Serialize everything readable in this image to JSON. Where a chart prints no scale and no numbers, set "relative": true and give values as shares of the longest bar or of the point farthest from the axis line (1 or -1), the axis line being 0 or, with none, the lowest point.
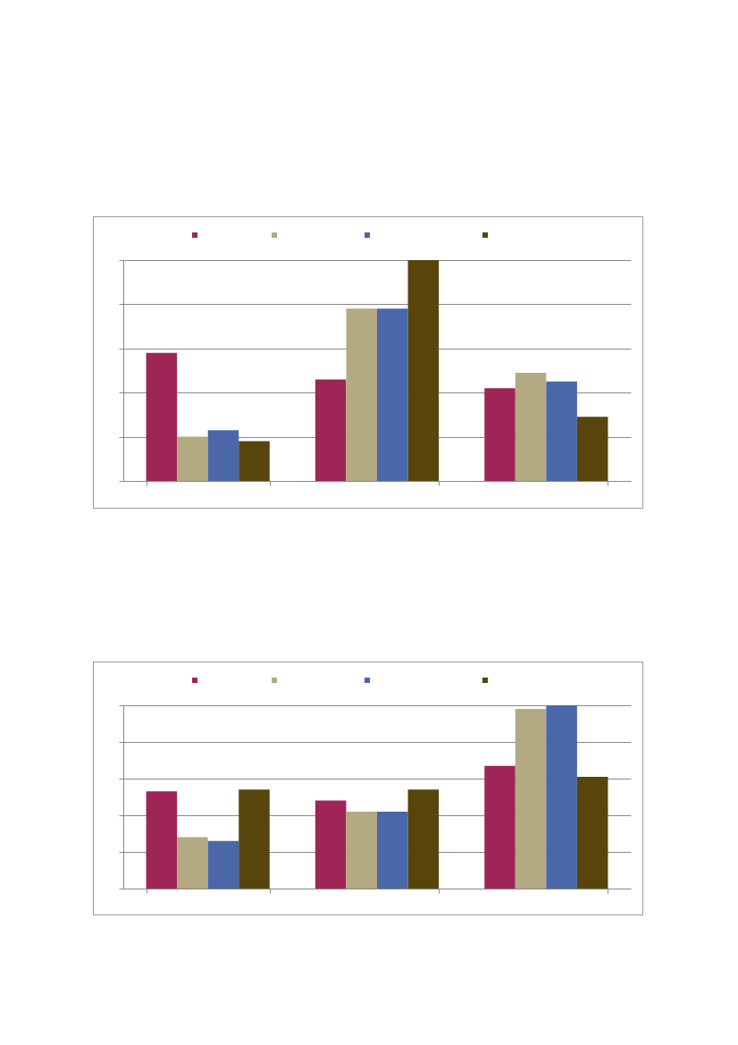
{
  "chart_data": [
    {
      "type": "bar",
      "relative": true,
      "categories": [
        null,
        null,
        null
      ],
      "grid": "y",
      "series": [
        {
          "color": "#9e2555",
          "values": [
            0.58,
            0.46,
            0.42
          ]
        },
        {
          "color": "#b3aa82",
          "values": [
            0.2,
            0.78,
            0.49
          ]
        },
        {
          "color": "#4a67aa",
          "values": [
            0.23,
            0.78,
            0.45
          ]
        },
        {
          "color": "#58450c",
          "values": [
            0.18,
            1,
            0.29
          ]
        }
      ]
    },
    {
      "type": "bar",
      "relative": true,
      "categories": [
        null,
        null,
        null
      ],
      "grid": "y",
      "series": [
        {
          "color": "#9e2555",
          "values": [
            0.53,
            0.48,
            0.67
          ]
        },
        {
          "color": "#b3aa82",
          "values": [
            0.28,
            0.42,
            0.98
          ]
        },
        {
          "color": "#4a67aa",
          "values": [
            0.26,
            0.42,
            1
          ]
        },
        {
          "color": "#58450c",
          "values": [
            0.54,
            0.54,
            0.61
          ]
        }
      ]
    }
  ]
}
